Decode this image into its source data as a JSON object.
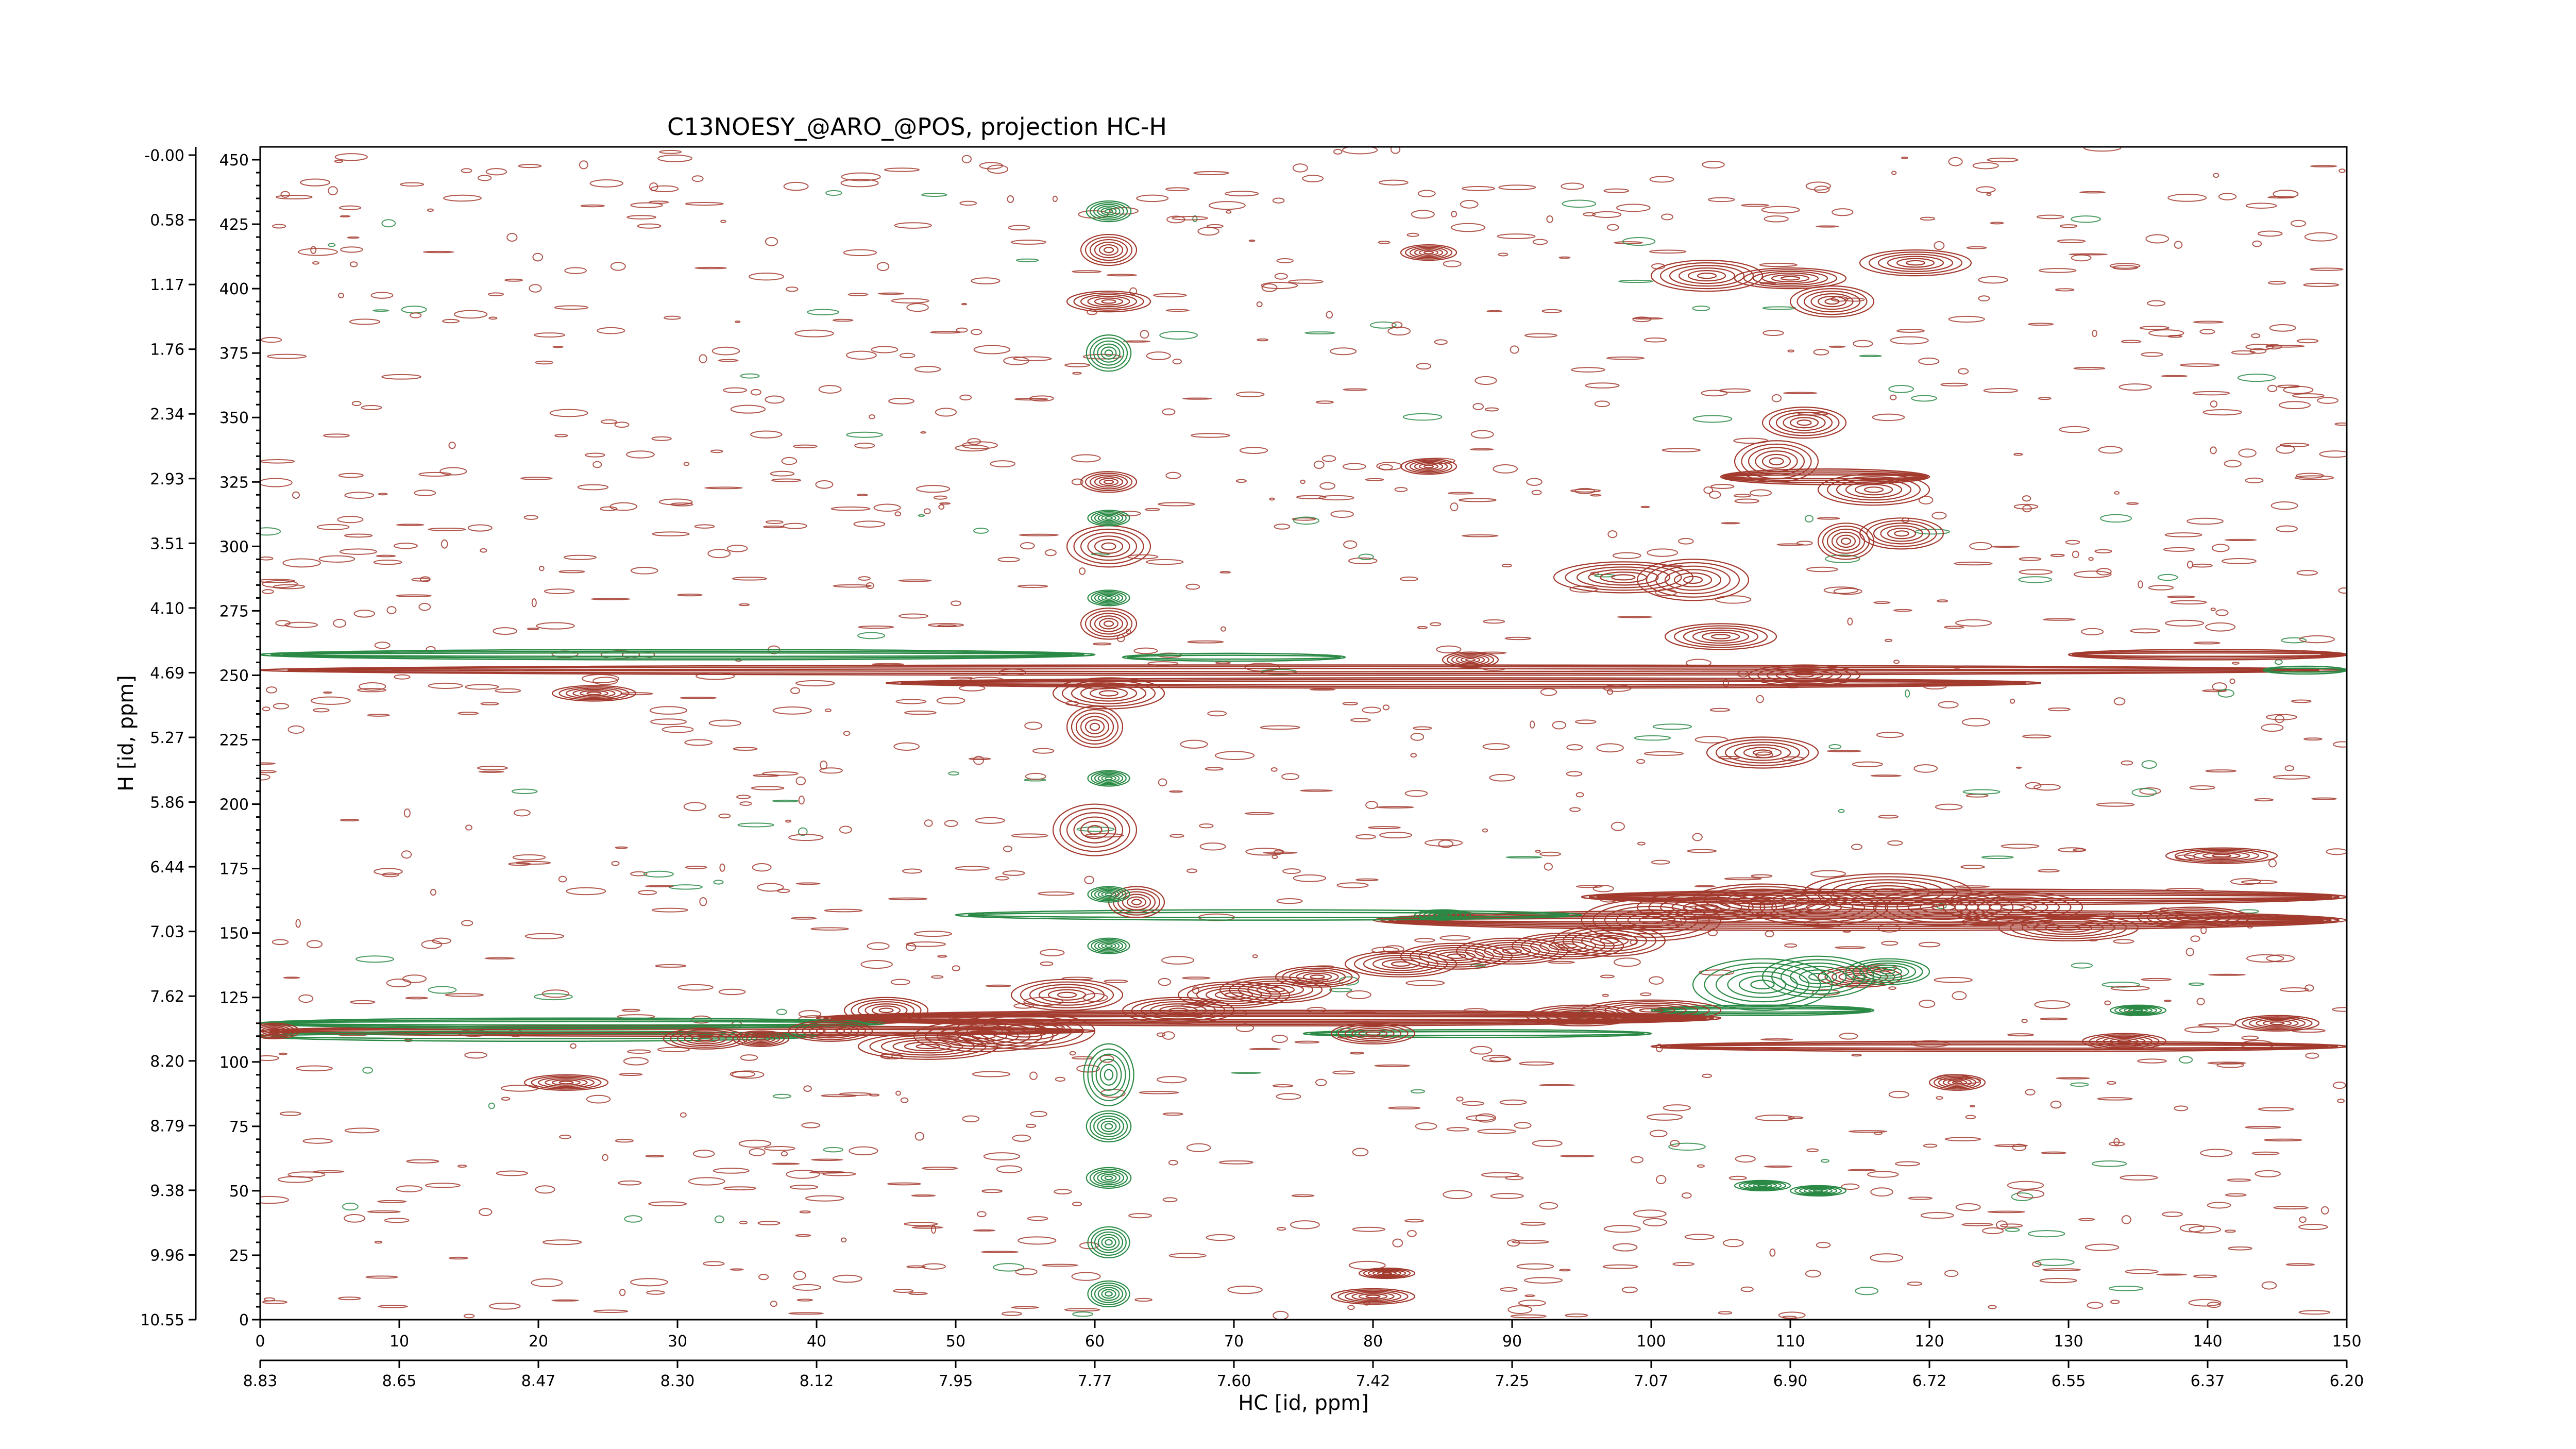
{
  "chart_data": {
    "type": "contour",
    "title": "C13NOESY_@ARO_@POS, projection HC-H",
    "xlabel": "HC [id, ppm]",
    "ylabel": "H [id, ppm]",
    "x_index_ticks": [
      "0",
      "10",
      "20",
      "30",
      "40",
      "50",
      "60",
      "70",
      "80",
      "90",
      "100",
      "110",
      "120",
      "130",
      "140",
      "150"
    ],
    "x_ppm_ticks": [
      "8.83",
      "8.65",
      "8.47",
      "8.30",
      "8.12",
      "7.95",
      "7.77",
      "7.60",
      "7.42",
      "7.25",
      "7.07",
      "6.90",
      "6.72",
      "6.55",
      "6.37",
      "6.20"
    ],
    "y_index_ticks": [
      "450",
      "425",
      "400",
      "375",
      "350",
      "325",
      "300",
      "275",
      "250",
      "225",
      "200",
      "175",
      "150",
      "125",
      "100",
      "75",
      "50",
      "25",
      "0"
    ],
    "y_ppm_ticks": [
      "-0.00",
      "0.58",
      "1.17",
      "1.76",
      "2.34",
      "2.93",
      "3.51",
      "4.10",
      "4.69",
      "5.27",
      "5.86",
      "6.44",
      "7.03",
      "7.62",
      "8.20",
      "8.79",
      "9.38",
      "9.96",
      "10.55"
    ],
    "xlim_index": [
      0,
      150
    ],
    "ylim_index": [
      0,
      455
    ],
    "colors": {
      "positive": "#a33a2e",
      "negative": "#2a8a45"
    },
    "series": [
      {
        "polarity": "positive",
        "peaks": [
          {
            "x": 1,
            "y": 112,
            "rx": 1.8,
            "ry": 3
          },
          {
            "x": 22,
            "y": 92,
            "rx": 3,
            "ry": 3
          },
          {
            "x": 24,
            "y": 243,
            "rx": 3,
            "ry": 3
          },
          {
            "x": 32,
            "y": 109,
            "rx": 3,
            "ry": 4
          },
          {
            "x": 36,
            "y": 109,
            "rx": 2,
            "ry": 3
          },
          {
            "x": 41,
            "y": 112,
            "rx": 3,
            "ry": 4
          },
          {
            "x": 45,
            "y": 120,
            "rx": 3,
            "ry": 5
          },
          {
            "x": 48,
            "y": 106,
            "rx": 5,
            "ry": 5
          },
          {
            "x": 52,
            "y": 110,
            "rx": 5,
            "ry": 6
          },
          {
            "x": 55,
            "y": 112,
            "rx": 5,
            "ry": 7
          },
          {
            "x": 58,
            "y": 126,
            "rx": 4,
            "ry": 6
          },
          {
            "x": 60,
            "y": 190,
            "rx": 3,
            "ry": 10
          },
          {
            "x": 60,
            "y": 230,
            "rx": 2,
            "ry": 8
          },
          {
            "x": 61,
            "y": 243,
            "rx": 4,
            "ry": 6
          },
          {
            "x": 61,
            "y": 270,
            "rx": 2,
            "ry": 6
          },
          {
            "x": 61,
            "y": 300,
            "rx": 3,
            "ry": 8
          },
          {
            "x": 61,
            "y": 325,
            "rx": 2,
            "ry": 4
          },
          {
            "x": 61,
            "y": 415,
            "rx": 2,
            "ry": 6
          },
          {
            "x": 61,
            "y": 395,
            "rx": 3,
            "ry": 4
          },
          {
            "x": 63,
            "y": 162,
            "rx": 2,
            "ry": 6
          },
          {
            "x": 66,
            "y": 120,
            "rx": 4,
            "ry": 5
          },
          {
            "x": 70,
            "y": 126,
            "rx": 4,
            "ry": 5
          },
          {
            "x": 73,
            "y": 128,
            "rx": 4,
            "ry": 5
          },
          {
            "x": 76,
            "y": 133,
            "rx": 3,
            "ry": 4
          },
          {
            "x": 80,
            "y": 111,
            "rx": 3,
            "ry": 4
          },
          {
            "x": 80,
            "y": 9,
            "rx": 3,
            "ry": 3
          },
          {
            "x": 81,
            "y": 18,
            "rx": 2,
            "ry": 2
          },
          {
            "x": 82,
            "y": 138,
            "rx": 4,
            "ry": 5
          },
          {
            "x": 84,
            "y": 331,
            "rx": 2,
            "ry": 3
          },
          {
            "x": 84,
            "y": 414,
            "rx": 2,
            "ry": 3
          },
          {
            "x": 86,
            "y": 141,
            "rx": 4,
            "ry": 5
          },
          {
            "x": 87,
            "y": 256,
            "rx": 2,
            "ry": 3
          },
          {
            "x": 90,
            "y": 143,
            "rx": 4,
            "ry": 5
          },
          {
            "x": 94,
            "y": 145,
            "rx": 4,
            "ry": 5
          },
          {
            "x": 95,
            "y": 118,
            "rx": 4,
            "ry": 4
          },
          {
            "x": 97,
            "y": 147,
            "rx": 4,
            "ry": 6
          },
          {
            "x": 98,
            "y": 288,
            "rx": 5,
            "ry": 6
          },
          {
            "x": 100,
            "y": 155,
            "rx": 5,
            "ry": 8
          },
          {
            "x": 100,
            "y": 120,
            "rx": 5,
            "ry": 4
          },
          {
            "x": 103,
            "y": 287,
            "rx": 4,
            "ry": 8
          },
          {
            "x": 104,
            "y": 160,
            "rx": 5,
            "ry": 6
          },
          {
            "x": 104,
            "y": 405,
            "rx": 4,
            "ry": 6
          },
          {
            "x": 105,
            "y": 265,
            "rx": 4,
            "ry": 5
          },
          {
            "x": 108,
            "y": 163,
            "rx": 5,
            "ry": 6
          },
          {
            "x": 108,
            "y": 220,
            "rx": 4,
            "ry": 6
          },
          {
            "x": 109,
            "y": 333,
            "rx": 3,
            "ry": 8
          },
          {
            "x": 110,
            "y": 404,
            "rx": 4,
            "ry": 4
          },
          {
            "x": 111,
            "y": 348,
            "rx": 3,
            "ry": 6
          },
          {
            "x": 111,
            "y": 250,
            "rx": 4,
            "ry": 4
          },
          {
            "x": 112,
            "y": 160,
            "rx": 5,
            "ry": 7
          },
          {
            "x": 113,
            "y": 395,
            "rx": 3,
            "ry": 6
          },
          {
            "x": 114,
            "y": 302,
            "rx": 2,
            "ry": 7
          },
          {
            "x": 115,
            "y": 133,
            "rx": 3,
            "ry": 4
          },
          {
            "x": 116,
            "y": 322,
            "rx": 4,
            "ry": 6
          },
          {
            "x": 117,
            "y": 166,
            "rx": 6,
            "ry": 7
          },
          {
            "x": 118,
            "y": 305,
            "rx": 3,
            "ry": 6
          },
          {
            "x": 119,
            "y": 410,
            "rx": 4,
            "ry": 5
          },
          {
            "x": 121,
            "y": 160,
            "rx": 5,
            "ry": 7
          },
          {
            "x": 122,
            "y": 92,
            "rx": 2,
            "ry": 3
          },
          {
            "x": 126,
            "y": 160,
            "rx": 5,
            "ry": 6
          },
          {
            "x": 130,
            "y": 152,
            "rx": 5,
            "ry": 5
          },
          {
            "x": 134,
            "y": 108,
            "rx": 3,
            "ry": 3
          },
          {
            "x": 139,
            "y": 156,
            "rx": 4,
            "ry": 4
          },
          {
            "x": 141,
            "y": 180,
            "rx": 4,
            "ry": 3
          },
          {
            "x": 145,
            "y": 115,
            "rx": 3,
            "ry": 3
          }
        ],
        "ridges": [
          {
            "x1": 0,
            "x2": 150,
            "y": 252,
            "ry": 2,
            "levels": 3
          },
          {
            "x1": 45,
            "x2": 128,
            "y": 247,
            "ry": 2,
            "levels": 3
          },
          {
            "x1": 40,
            "x2": 105,
            "y": 117,
            "ry": 3,
            "levels": 5
          },
          {
            "x1": 0,
            "x2": 60,
            "y": 112,
            "ry": 2,
            "levels": 3
          },
          {
            "x1": 80,
            "x2": 150,
            "y": 155,
            "ry": 4,
            "levels": 5
          },
          {
            "x1": 95,
            "x2": 150,
            "y": 164,
            "ry": 3,
            "levels": 4
          },
          {
            "x1": 100,
            "x2": 150,
            "y": 106,
            "ry": 2,
            "levels": 3
          },
          {
            "x1": 105,
            "x2": 120,
            "y": 327,
            "ry": 3,
            "levels": 4
          },
          {
            "x1": 130,
            "x2": 150,
            "y": 258,
            "ry": 2,
            "levels": 3
          }
        ]
      },
      {
        "polarity": "negative",
        "peaks": [
          {
            "x": 61,
            "y": 95,
            "rx": 1.8,
            "ry": 12
          },
          {
            "x": 61,
            "y": 75,
            "rx": 1.6,
            "ry": 6
          },
          {
            "x": 61,
            "y": 55,
            "rx": 1.6,
            "ry": 4
          },
          {
            "x": 61,
            "y": 30,
            "rx": 1.5,
            "ry": 6
          },
          {
            "x": 61,
            "y": 10,
            "rx": 1.5,
            "ry": 5
          },
          {
            "x": 61,
            "y": 145,
            "rx": 1.5,
            "ry": 3
          },
          {
            "x": 61,
            "y": 165,
            "rx": 1.5,
            "ry": 3
          },
          {
            "x": 61,
            "y": 210,
            "rx": 1.5,
            "ry": 3
          },
          {
            "x": 61,
            "y": 280,
            "rx": 1.5,
            "ry": 3
          },
          {
            "x": 61,
            "y": 311,
            "rx": 1.5,
            "ry": 3
          },
          {
            "x": 61,
            "y": 375,
            "rx": 1.6,
            "ry": 7
          },
          {
            "x": 61,
            "y": 430,
            "rx": 1.6,
            "ry": 4
          },
          {
            "x": 108,
            "y": 130,
            "rx": 5,
            "ry": 10
          },
          {
            "x": 112,
            "y": 133,
            "rx": 4,
            "ry": 8
          },
          {
            "x": 117,
            "y": 135,
            "rx": 3,
            "ry": 5
          },
          {
            "x": 108,
            "y": 52,
            "rx": 2,
            "ry": 2
          },
          {
            "x": 112,
            "y": 50,
            "rx": 2,
            "ry": 2
          },
          {
            "x": 135,
            "y": 120,
            "rx": 2,
            "ry": 2
          },
          {
            "x": 85,
            "y": 157,
            "rx": 2,
            "ry": 2
          }
        ],
        "ridges": [
          {
            "x1": 0,
            "x2": 60,
            "y": 258,
            "ry": 2,
            "levels": 3
          },
          {
            "x1": 62,
            "x2": 78,
            "y": 257,
            "ry": 1.5,
            "levels": 2
          },
          {
            "x1": 0,
            "x2": 45,
            "y": 115,
            "ry": 2,
            "levels": 3
          },
          {
            "x1": 0,
            "x2": 40,
            "y": 110,
            "ry": 2,
            "levels": 2
          },
          {
            "x1": 50,
            "x2": 95,
            "y": 157,
            "ry": 2,
            "levels": 2
          },
          {
            "x1": 75,
            "x2": 100,
            "y": 111,
            "ry": 1.5,
            "levels": 2
          },
          {
            "x1": 100,
            "x2": 116,
            "y": 120,
            "ry": 2,
            "levels": 3
          },
          {
            "x1": 144,
            "x2": 150,
            "y": 252,
            "ry": 1.5,
            "levels": 2
          }
        ]
      }
    ]
  }
}
